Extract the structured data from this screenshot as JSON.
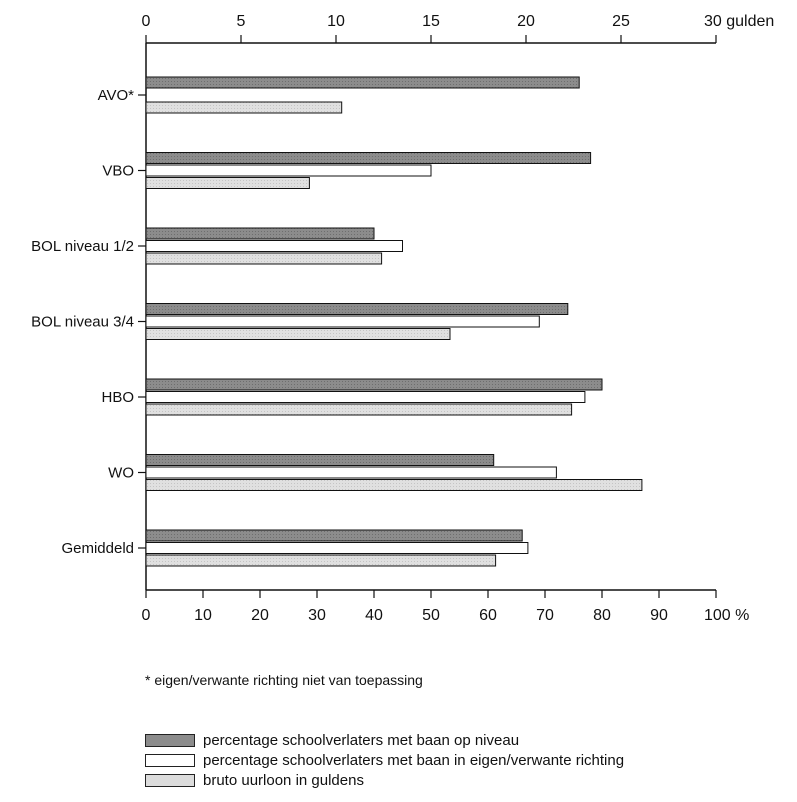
{
  "chart_data": {
    "type": "bar",
    "orientation": "horizontal",
    "categories": [
      "AVO*",
      "VBO",
      "BOL niveau 1/2",
      "BOL niveau 3/4",
      "HBO",
      "WO",
      "Gemiddeld"
    ],
    "series": [
      {
        "name": "percentage schoolverlaters met baan op niveau",
        "axis": "bottom",
        "color": "#8c8c8c",
        "values": [
          76,
          78,
          40,
          74,
          80,
          61,
          66
        ]
      },
      {
        "name": "percentage schoolverlaters met baan in eigen/verwante richting",
        "axis": "bottom",
        "color": "#ffffff",
        "values": [
          null,
          50,
          45,
          69,
          77,
          72,
          67
        ]
      },
      {
        "name": "bruto uurloon in guldens",
        "axis": "top",
        "color": "#dcdcdc",
        "values": [
          10.3,
          8.6,
          12.4,
          16.0,
          22.4,
          26.1,
          18.4
        ]
      }
    ],
    "x_bottom": {
      "ticks": [
        "0",
        "10",
        "20",
        "30",
        "40",
        "50",
        "60",
        "70",
        "80",
        "90",
        "100 %"
      ],
      "range": [
        0,
        100
      ]
    },
    "x_top": {
      "ticks": [
        "0",
        "5",
        "10",
        "15",
        "20",
        "25",
        "30 gulden"
      ],
      "range": [
        0,
        30
      ]
    },
    "footnote": "* eigen/verwante richting niet van toepassing",
    "legend_position": "bottom-left"
  }
}
